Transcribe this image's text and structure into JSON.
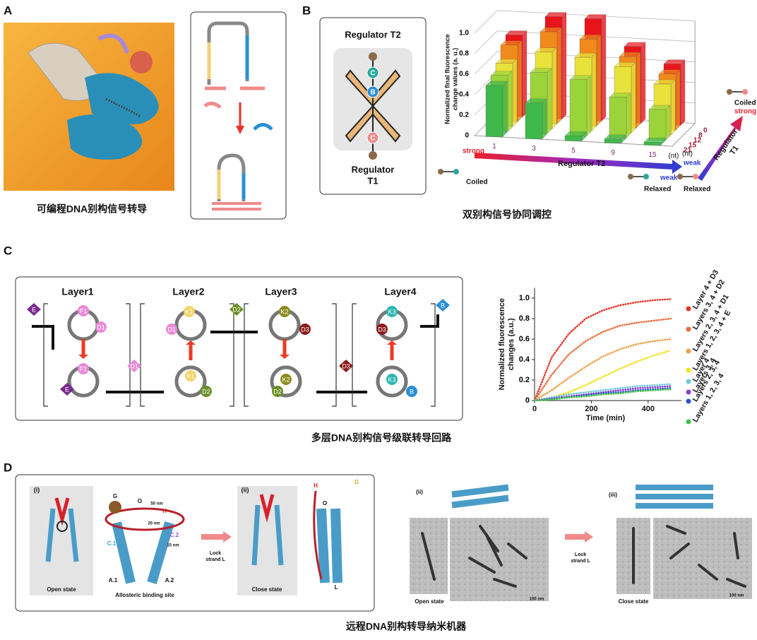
{
  "panel_a": {
    "label": "A",
    "caption": "可编程DNA别构信号转导"
  },
  "panel_b": {
    "label": "B",
    "caption": "双别构信号协同调控",
    "diagram": {
      "top": "Regulator T2",
      "bottom": [
        "Regulator",
        "T1"
      ],
      "nodes": [
        "C",
        "B",
        "C"
      ]
    },
    "chart_data": {
      "type": "bar3d",
      "categories": [
        "1",
        "3",
        "5",
        "9",
        "15"
      ],
      "x_unit": "(nt)",
      "xlabel": "Regulator T2",
      "depth_categories": [
        "0",
        "8",
        "12",
        "15",
        "21"
      ],
      "depth_unit": "(nt)",
      "depth_label": [
        "Regulator",
        "T1"
      ],
      "zlabel": [
        "Normalized final fluorescence",
        "change values (a. u.)"
      ],
      "zlim": [
        0,
        1
      ],
      "zticks": [
        0,
        0.2,
        0.4,
        0.6,
        0.8,
        {
          "value": 1,
          "label": "1.0"
        }
      ],
      "grid": true,
      "rows": [
        {
          "color": "#e8141b",
          "values": [
            0.8,
            1.0,
            1.0,
            0.75,
            0.6
          ]
        },
        {
          "color": "#f08a1c",
          "values": [
            0.75,
            0.9,
            0.85,
            0.7,
            0.55
          ]
        },
        {
          "color": "#e9e23a",
          "values": [
            0.62,
            0.75,
            0.72,
            0.65,
            0.5
          ]
        },
        {
          "color": "#9ad43a",
          "values": [
            0.55,
            0.6,
            0.55,
            0.4,
            0.3
          ]
        },
        {
          "color": "#3fb84a",
          "values": [
            0.5,
            0.35,
            0.05,
            0.04,
            0.03
          ]
        }
      ]
    },
    "annotations": {
      "x_strong": "strong",
      "x_weak": "weak",
      "x_coiled": "Coiled",
      "x_relaxed": "Relaxed",
      "t1_coiled": "Coiled",
      "t1_strong": "strong",
      "t1_weak": "weak",
      "t1_relaxed": "Relaxed"
    }
  },
  "panel_c": {
    "label": "C",
    "caption": "多层DNA别构信号级联转导回路",
    "layers": [
      "Layer1",
      "Layer2",
      "Layer3",
      "Layer4"
    ],
    "nodes": [
      "E",
      "F1",
      "D1",
      "K1",
      "D1",
      "D2",
      "K2",
      "D3",
      "K3",
      "D3",
      "B",
      "F1",
      "E",
      "D1",
      "K1",
      "D2",
      "K2",
      "D2",
      "D3",
      "K3",
      "B"
    ],
    "chart_data": {
      "type": "line",
      "x": [
        0,
        60,
        120,
        180,
        240,
        300,
        360,
        420,
        480
      ],
      "xlim": [
        0,
        500
      ],
      "xticks": [
        0,
        200,
        400
      ],
      "xlabel": "Time (min)",
      "ylim": [
        0,
        1.1
      ],
      "yticks": [
        0,
        0.2,
        0.4,
        0.6,
        0.8,
        {
          "value": 1,
          "label": "1.0"
        }
      ],
      "ylabel": [
        "Normalized fluorescence",
        "changes (a.u.)"
      ],
      "series": [
        {
          "name": "Layer 4 + D3",
          "color": "#e8322a",
          "values": [
            0,
            0.42,
            0.65,
            0.8,
            0.88,
            0.93,
            0.96,
            0.98,
            0.99
          ]
        },
        {
          "name": "Layers 3, 4 + D2",
          "color": "#ee6a3a",
          "values": [
            0,
            0.25,
            0.45,
            0.58,
            0.67,
            0.73,
            0.76,
            0.78,
            0.8
          ]
        },
        {
          "name": "Layers 2, 3, 4 + D1",
          "color": "#eda14a",
          "values": [
            0,
            0.1,
            0.22,
            0.33,
            0.43,
            0.5,
            0.55,
            0.58,
            0.6
          ]
        },
        {
          "name": "Layers 1, 2, 3, 4 + E",
          "color": "#f2e21c",
          "values": [
            0,
            0.03,
            0.08,
            0.15,
            0.23,
            0.31,
            0.38,
            0.44,
            0.49
          ]
        },
        {
          "name": "Layer 4",
          "color": "#6cc8e0",
          "values": [
            0,
            0.03,
            0.06,
            0.08,
            0.1,
            0.12,
            0.14,
            0.15,
            0.16
          ]
        },
        {
          "name": "Layers 3, 4",
          "color": "#8a3fc8",
          "values": [
            0,
            0.02,
            0.04,
            0.06,
            0.08,
            0.1,
            0.12,
            0.13,
            0.14
          ]
        },
        {
          "name": "Layers 2, 3, 4",
          "color": "#2d4fd0",
          "values": [
            0,
            0.015,
            0.03,
            0.05,
            0.07,
            0.08,
            0.1,
            0.11,
            0.12
          ]
        },
        {
          "name": "Layers 1, 2, 3, 4",
          "color": "#3ec24a",
          "values": [
            0,
            0.01,
            0.03,
            0.04,
            0.06,
            0.07,
            0.09,
            0.1,
            0.11
          ]
        }
      ]
    }
  },
  "panel_d": {
    "label": "D",
    "caption": "远程DNA别构转导纳米机器",
    "labels": [
      "(i)",
      "Open state",
      "G",
      "O",
      "H",
      "50 nm",
      "20 nm",
      "15 nm",
      "C.1",
      "C.2",
      "A.1",
      "A.2",
      "Allosteric binding site",
      "Lock",
      "strand L",
      "(ii)",
      "Close state",
      "H",
      "G",
      "O",
      "L",
      "(ii)",
      "Open state",
      "100 nm",
      "Lock",
      "strand L",
      "(iii)",
      "Close state",
      "100 nm"
    ]
  }
}
